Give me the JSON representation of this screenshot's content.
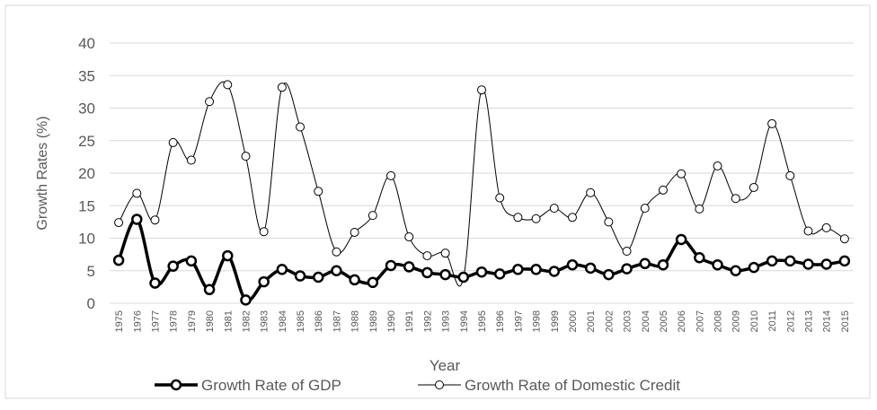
{
  "chart_data": {
    "type": "line",
    "x_label": "Year",
    "y_label": "Growth Rates (%)",
    "categories": [
      "1975",
      "1976",
      "1977",
      "1978",
      "1979",
      "1980",
      "1981",
      "1982",
      "1983",
      "1984",
      "1985",
      "1986",
      "1987",
      "1988",
      "1989",
      "1990",
      "1991",
      "1992",
      "1993",
      "1994",
      "1995",
      "1996",
      "1997",
      "1998",
      "1999",
      "2000",
      "2001",
      "2002",
      "2003",
      "2004",
      "2005",
      "2006",
      "2007",
      "2008",
      "2009",
      "2010",
      "2011",
      "2012",
      "2013",
      "2014",
      "2015"
    ],
    "series": [
      {
        "name": "Growth Rate of GDP",
        "color": "#000000",
        "values": [
          6.6,
          12.9,
          3.1,
          5.7,
          6.5,
          2.1,
          7.3,
          0.5,
          3.3,
          5.2,
          4.2,
          4.0,
          5.0,
          3.6,
          3.2,
          5.8,
          5.6,
          4.7,
          4.4,
          4.0,
          4.8,
          4.5,
          5.2,
          5.2,
          4.9,
          5.9,
          5.4,
          4.4,
          5.3,
          6.1,
          5.9,
          9.8,
          7.0,
          5.9,
          5.0,
          5.5,
          6.5,
          6.5,
          6.0,
          6.0,
          6.5
        ]
      },
      {
        "name": "Growth Rate of Domestic Credit",
        "color": "#000000",
        "values": [
          12.4,
          16.9,
          12.8,
          24.7,
          22.0,
          31.0,
          33.6,
          22.6,
          11.0,
          33.2,
          27.1,
          17.2,
          7.9,
          10.9,
          13.5,
          19.6,
          10.2,
          7.3,
          7.7,
          3.9,
          32.8,
          16.2,
          13.2,
          13.0,
          14.6,
          13.2,
          17.0,
          12.5,
          8.0,
          14.6,
          17.4,
          19.9,
          14.5,
          21.1,
          16.1,
          17.8,
          27.6,
          19.6,
          11.1,
          11.6,
          9.9
        ]
      }
    ],
    "ylim": [
      0,
      40
    ],
    "yticks": [
      0,
      5,
      10,
      15,
      20,
      25,
      30,
      35,
      40
    ],
    "grid": true
  }
}
